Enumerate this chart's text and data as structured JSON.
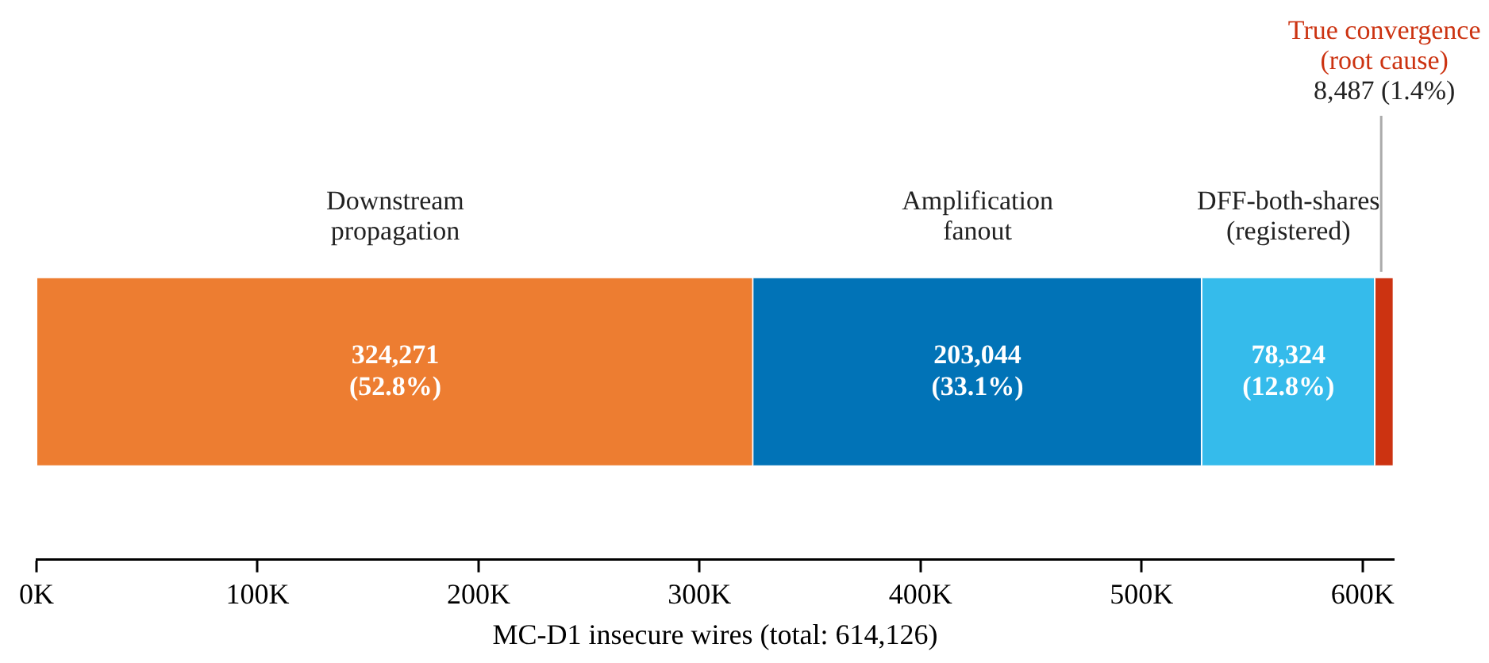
{
  "chart_data": {
    "type": "bar",
    "orientation": "horizontal",
    "stacked": true,
    "xlabel": "MC-D1 insecure wires (total: 614,126)",
    "categories": [
      null
    ],
    "series": [
      {
        "name": "Downstream propagation",
        "color": "#ed7d31",
        "values": [
          324271
        ],
        "value_labels": [
          "324,271 (52.8%)"
        ]
      },
      {
        "name": "Amplification fanout",
        "color": "#0173b7",
        "values": [
          203044
        ],
        "value_labels": [
          "203,044 (33.1%)"
        ]
      },
      {
        "name": "DFF-both-shares (registered)",
        "color": "#35bbeb",
        "values": [
          78324
        ],
        "value_labels": [
          "78,324 (12.8%)"
        ]
      },
      {
        "name": "True convergence (root cause)",
        "color": "#cc3311",
        "values": [
          8487
        ],
        "value_labels": [
          "8,487 (1.4%)"
        ]
      }
    ],
    "xlim": [
      0,
      614126
    ],
    "xticks": [
      {
        "value": 0,
        "label": "0K"
      },
      {
        "value": 100000,
        "label": "100K"
      },
      {
        "value": 200000,
        "label": "200K"
      },
      {
        "value": 300000,
        "label": "300K"
      },
      {
        "value": 400000,
        "label": "400K"
      },
      {
        "value": 500000,
        "label": "500K"
      },
      {
        "value": 600000,
        "label": "600K"
      }
    ],
    "legend": false,
    "grid": false
  }
}
